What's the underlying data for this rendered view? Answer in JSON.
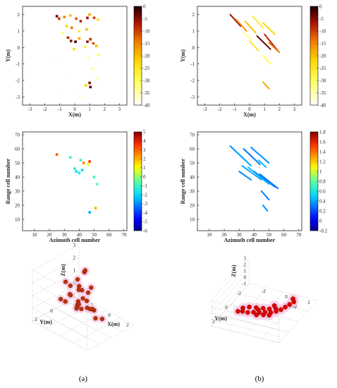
{
  "captions": {
    "a": "(a)",
    "b": "(b)"
  },
  "chart_data": [
    {
      "id": "a-top",
      "type": "scatter",
      "xlabel": "X(m)",
      "ylabel": "Y(m)",
      "xlim": [
        -3.5,
        3.5
      ],
      "ylim": [
        -3.5,
        2.5
      ],
      "xticks": [
        -3,
        -2,
        -1,
        0,
        1,
        2,
        3
      ],
      "yticks": [
        -3,
        -2,
        -1,
        0,
        1,
        2
      ],
      "colorbar": {
        "min": -40,
        "max": 0,
        "ticks": [
          0,
          -5,
          -10,
          -15,
          -20,
          -25,
          -30,
          -35,
          -40
        ],
        "colormap": "hot"
      },
      "points": [
        {
          "x": -1.2,
          "y": 1.9,
          "v": -4
        },
        {
          "x": -1.05,
          "y": 1.75,
          "v": -10
        },
        {
          "x": -0.7,
          "y": 1.85,
          "v": -15
        },
        {
          "x": -0.3,
          "y": 1.95,
          "v": -20
        },
        {
          "x": 0.1,
          "y": 1.75,
          "v": -12
        },
        {
          "x": 0.4,
          "y": 1.6,
          "v": -8
        },
        {
          "x": 0.85,
          "y": 1.8,
          "v": -6
        },
        {
          "x": 1.0,
          "y": 2.0,
          "v": -18
        },
        {
          "x": 1.3,
          "y": 1.8,
          "v": -10
        },
        {
          "x": 1.55,
          "y": 1.7,
          "v": -25
        },
        {
          "x": -0.55,
          "y": 1.3,
          "v": -22
        },
        {
          "x": -0.2,
          "y": 1.2,
          "v": -14
        },
        {
          "x": 0.3,
          "y": 1.0,
          "v": -26
        },
        {
          "x": 0.8,
          "y": 1.1,
          "v": -20
        },
        {
          "x": -0.8,
          "y": 0.9,
          "v": -30
        },
        {
          "x": -0.45,
          "y": 0.6,
          "v": -8
        },
        {
          "x": -0.25,
          "y": 0.4,
          "v": -5
        },
        {
          "x": 0.05,
          "y": 0.35,
          "v": -2
        },
        {
          "x": 0.3,
          "y": 0.55,
          "v": -18
        },
        {
          "x": 0.85,
          "y": 0.35,
          "v": -6
        },
        {
          "x": 1.05,
          "y": 0.5,
          "v": -9
        },
        {
          "x": 1.25,
          "y": 0.25,
          "v": -12
        },
        {
          "x": 1.45,
          "y": 0.1,
          "v": -20
        },
        {
          "x": 0.7,
          "y": 0.05,
          "v": -28
        },
        {
          "x": -0.05,
          "y": -0.1,
          "v": -24
        },
        {
          "x": 1.6,
          "y": -0.45,
          "v": -30
        },
        {
          "x": 0.9,
          "y": -0.6,
          "v": -34
        },
        {
          "x": 1.2,
          "y": -1.3,
          "v": -32
        },
        {
          "x": 1.0,
          "y": -2.15,
          "v": -5
        },
        {
          "x": 1.05,
          "y": -2.4,
          "v": -3
        },
        {
          "x": 0.75,
          "y": -2.3,
          "v": -22
        },
        {
          "x": 1.5,
          "y": -1.9,
          "v": -36
        },
        {
          "x": -0.3,
          "y": -1.6,
          "v": -38
        },
        {
          "x": -1.2,
          "y": -0.6,
          "v": -38
        },
        {
          "x": 0.4,
          "y": -3.0,
          "v": -37
        },
        {
          "x": -0.9,
          "y": -2.6,
          "v": -39
        }
      ]
    },
    {
      "id": "b-top",
      "type": "scatter",
      "xlabel": "X(m)",
      "ylabel": "Y(m)",
      "xlim": [
        -3.5,
        3.5
      ],
      "ylim": [
        -3.5,
        2.5
      ],
      "xticks": [
        -3,
        -2,
        -1,
        0,
        1,
        2,
        3
      ],
      "yticks": [
        -3,
        -2,
        -1,
        0,
        1,
        2
      ],
      "colorbar": {
        "min": -40,
        "max": 0,
        "ticks": [
          0,
          -5,
          -10,
          -15,
          -20,
          -25,
          -30,
          -35,
          -40
        ],
        "colormap": "hot"
      },
      "streaks": [
        {
          "x1": -1.3,
          "y1": 2.0,
          "x2": -0.6,
          "y2": 1.3,
          "v": -6
        },
        {
          "x1": -0.9,
          "y1": 1.7,
          "x2": -0.2,
          "y2": 1.0,
          "v": -16
        },
        {
          "x1": -0.3,
          "y1": 1.6,
          "x2": 0.4,
          "y2": 0.9,
          "v": -20
        },
        {
          "x1": 0.2,
          "y1": 1.9,
          "x2": 0.9,
          "y2": 1.2,
          "v": -26
        },
        {
          "x1": 0.9,
          "y1": 1.5,
          "x2": 1.7,
          "y2": 0.8,
          "v": -22
        },
        {
          "x1": 0.5,
          "y1": 0.7,
          "x2": 1.4,
          "y2": -0.1,
          "v": -3
        },
        {
          "x1": 1.0,
          "y1": 0.8,
          "x2": 1.9,
          "y2": -0.2,
          "v": -8
        },
        {
          "x1": 1.3,
          "y1": 0.3,
          "x2": 2.0,
          "y2": -0.3,
          "v": -14
        },
        {
          "x1": 0.0,
          "y1": 0.4,
          "x2": 0.6,
          "y2": -0.2,
          "v": -24
        },
        {
          "x1": 0.9,
          "y1": -0.5,
          "x2": 1.4,
          "y2": -1.0,
          "v": -30
        },
        {
          "x1": 0.9,
          "y1": -2.1,
          "x2": 1.3,
          "y2": -2.5,
          "v": -18
        },
        {
          "x1": -0.4,
          "y1": 0.9,
          "x2": 0.1,
          "y2": 0.5,
          "v": -33
        }
      ]
    },
    {
      "id": "a-mid",
      "type": "scatter",
      "xlabel": "Azimuth cell number",
      "ylabel": "Range cell number",
      "xlim": [
        2,
        72
      ],
      "ylim": [
        2,
        72
      ],
      "xticks": [
        10,
        20,
        30,
        40,
        50,
        60,
        70
      ],
      "yticks": [
        10,
        20,
        30,
        40,
        50,
        60,
        70
      ],
      "colorbar": {
        "min": -6,
        "max": 5,
        "ticks": [
          5,
          4,
          3,
          2,
          1,
          0,
          -1,
          -2,
          -3,
          -4,
          -5,
          -6
        ],
        "colormap": "jet"
      },
      "points": [
        {
          "x": 25,
          "y": 56,
          "v": 3
        },
        {
          "x": 34,
          "y": 54,
          "v": -1
        },
        {
          "x": 37,
          "y": 46,
          "v": -1.5
        },
        {
          "x": 38,
          "y": 44,
          "v": -2
        },
        {
          "x": 40,
          "y": 43,
          "v": -1.5
        },
        {
          "x": 42,
          "y": 45,
          "v": -2
        },
        {
          "x": 43,
          "y": 50,
          "v": 2.5
        },
        {
          "x": 46,
          "y": 49,
          "v": 1
        },
        {
          "x": 47,
          "y": 51,
          "v": 3.5
        },
        {
          "x": 50,
          "y": 40,
          "v": -1
        },
        {
          "x": 52,
          "y": 35,
          "v": -0.5
        },
        {
          "x": 51,
          "y": 18,
          "v": 2
        },
        {
          "x": 47,
          "y": 15,
          "v": -2.5
        },
        {
          "x": 41,
          "y": 52,
          "v": -1
        }
      ]
    },
    {
      "id": "b-mid",
      "type": "scatter",
      "xlabel": "Azimuth cell number",
      "ylabel": "Range cell number",
      "xlim": [
        2,
        72
      ],
      "ylim": [
        2,
        72
      ],
      "xticks": [
        10,
        20,
        30,
        40,
        50,
        60,
        70
      ],
      "yticks": [
        10,
        20,
        30,
        40,
        50,
        60,
        70
      ],
      "colorbar": {
        "min": -0.2,
        "max": 1.8,
        "ticks": [
          1.8,
          1.6,
          1.4,
          1.2,
          1,
          0.8,
          0.6,
          0.4,
          0.2,
          0,
          -0.2
        ],
        "colormap": "jet"
      },
      "streaks": [
        {
          "x1": 24,
          "y1": 62,
          "x2": 34,
          "y2": 52,
          "v": 0.35
        },
        {
          "x1": 28,
          "y1": 58,
          "x2": 38,
          "y2": 48,
          "v": 0.4
        },
        {
          "x1": 33,
          "y1": 60,
          "x2": 44,
          "y2": 49,
          "v": 0.3
        },
        {
          "x1": 38,
          "y1": 61,
          "x2": 50,
          "y2": 50,
          "v": 0.35
        },
        {
          "x1": 32,
          "y1": 48,
          "x2": 45,
          "y2": 38,
          "v": 0.4
        },
        {
          "x1": 36,
          "y1": 47,
          "x2": 50,
          "y2": 35,
          "v": 0.45
        },
        {
          "x1": 40,
          "y1": 44,
          "x2": 54,
          "y2": 33,
          "v": 0.35
        },
        {
          "x1": 44,
          "y1": 42,
          "x2": 56,
          "y2": 32,
          "v": 0.3
        },
        {
          "x1": 30,
          "y1": 44,
          "x2": 38,
          "y2": 38,
          "v": 0.35
        },
        {
          "x1": 45,
          "y1": 30,
          "x2": 50,
          "y2": 24,
          "v": 0.3
        },
        {
          "x1": 46,
          "y1": 20,
          "x2": 49,
          "y2": 16,
          "v": 0.35
        },
        {
          "x1": 43,
          "y1": 52,
          "x2": 48,
          "y2": 47,
          "v": 0.45
        }
      ]
    },
    {
      "id": "a-3d",
      "type": "scatter",
      "xlabel": "X(m)",
      "ylabel": "Y(m)",
      "zlabel": "Z(m)",
      "zticks": [
        -1,
        0,
        1,
        2,
        3
      ],
      "xticks": [
        -2,
        0,
        2
      ],
      "yticks": [
        -2,
        0,
        2
      ],
      "points": [
        {
          "x": 0.3,
          "y": 0.2,
          "z": 3.2
        },
        {
          "x": -0.2,
          "y": -0.5,
          "z": 2.9
        },
        {
          "x": -0.1,
          "y": 0.6,
          "z": 2.6
        },
        {
          "x": -0.9,
          "y": 1.2,
          "z": 2.3
        },
        {
          "x": 0.4,
          "y": 1.0,
          "z": 2.4
        },
        {
          "x": 0.7,
          "y": -0.2,
          "z": 2.0
        },
        {
          "x": 0.2,
          "y": 0.4,
          "z": 1.8
        },
        {
          "x": -0.4,
          "y": 0.1,
          "z": 1.5
        },
        {
          "x": 0.9,
          "y": 0.6,
          "z": 1.3
        },
        {
          "x": -0.7,
          "y": 0.8,
          "z": 1.2
        },
        {
          "x": -1.2,
          "y": 0.3,
          "z": 0.9
        },
        {
          "x": -0.2,
          "y": -0.2,
          "z": 0.8
        },
        {
          "x": 0.1,
          "y": 0.9,
          "z": 0.6
        },
        {
          "x": 0.6,
          "y": 0.2,
          "z": 0.5
        },
        {
          "x": 1.1,
          "y": -0.1,
          "z": 0.4
        },
        {
          "x": -0.8,
          "y": -0.3,
          "z": 0.3
        },
        {
          "x": -0.3,
          "y": 0.5,
          "z": 0.2
        },
        {
          "x": 0.5,
          "y": -0.6,
          "z": 0.1
        },
        {
          "x": 1.6,
          "y": 0.3,
          "z": 0.1
        },
        {
          "x": 1.9,
          "y": -0.2,
          "z": 0.0
        },
        {
          "x": -1.6,
          "y": 1.0,
          "z": 0.6
        },
        {
          "x": -1.4,
          "y": 0.0,
          "z": 1.4
        },
        {
          "x": 0.9,
          "y": 1.3,
          "z": 0.9
        },
        {
          "x": 0.0,
          "y": -0.9,
          "z": -0.2
        },
        {
          "x": -1.9,
          "y": -1.5,
          "z": -0.8
        },
        {
          "x": -2.0,
          "y": -1.8,
          "z": -0.9
        },
        {
          "x": 1.3,
          "y": 0.9,
          "z": 2.2
        },
        {
          "x": -0.6,
          "y": 1.6,
          "z": 1.0
        }
      ]
    },
    {
      "id": "b-3d",
      "type": "scatter",
      "xlabel": "X(m)",
      "ylabel": "Y(m)",
      "zlabel": "Z(m)",
      "zticks": [
        -1,
        0,
        1,
        2,
        3
      ],
      "xticks": [
        -2,
        0,
        2
      ],
      "yticks": [
        -2,
        0,
        2
      ],
      "points": [
        {
          "x": -1.5,
          "y": 1.5,
          "z": 0.3
        },
        {
          "x": -1.2,
          "y": 1.3,
          "z": 0.2
        },
        {
          "x": -0.8,
          "y": 1.2,
          "z": 0.1
        },
        {
          "x": -0.4,
          "y": 1.0,
          "z": 0.1
        },
        {
          "x": 0.0,
          "y": 0.8,
          "z": 0.0
        },
        {
          "x": 0.4,
          "y": 0.6,
          "z": 0.0
        },
        {
          "x": 0.8,
          "y": 0.4,
          "z": -0.1
        },
        {
          "x": 1.1,
          "y": 0.1,
          "z": -0.1
        },
        {
          "x": 1.3,
          "y": -0.3,
          "z": -0.2
        },
        {
          "x": 1.4,
          "y": -0.8,
          "z": -0.3
        },
        {
          "x": 1.5,
          "y": -1.3,
          "z": -0.4
        },
        {
          "x": 1.6,
          "y": -1.8,
          "z": -0.5
        },
        {
          "x": -1.0,
          "y": 0.6,
          "z": 0.2
        },
        {
          "x": -0.5,
          "y": 0.4,
          "z": 0.1
        },
        {
          "x": 0.0,
          "y": 0.2,
          "z": 0.0
        },
        {
          "x": 0.5,
          "y": 0.1,
          "z": 0.0
        },
        {
          "x": 0.9,
          "y": -0.2,
          "z": -0.1
        },
        {
          "x": -1.4,
          "y": 0.9,
          "z": 0.2
        },
        {
          "x": 0.2,
          "y": 1.6,
          "z": 0.6
        },
        {
          "x": 0.7,
          "y": 1.4,
          "z": 0.6
        },
        {
          "x": 1.1,
          "y": 1.2,
          "z": 0.5
        },
        {
          "x": 1.3,
          "y": -2.2,
          "z": -0.6
        },
        {
          "x": 0.6,
          "y": -0.5,
          "z": -0.1
        },
        {
          "x": -0.2,
          "y": 0.6,
          "z": 0.1
        }
      ]
    }
  ]
}
